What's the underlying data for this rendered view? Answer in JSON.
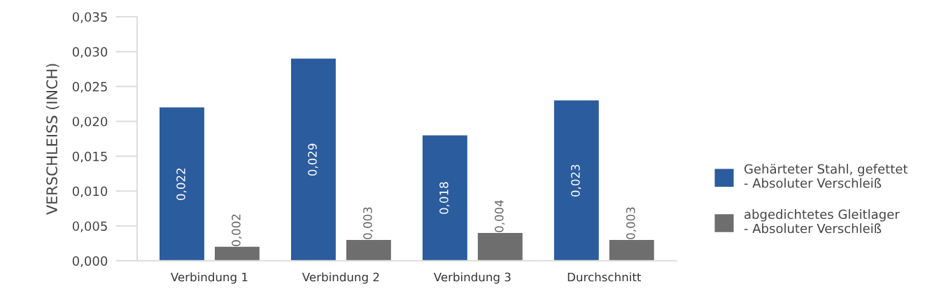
{
  "chart_data": {
    "type": "bar",
    "categories": [
      "Verbindung 1",
      "Verbindung 2",
      "Verbindung 3",
      "Durchschnitt"
    ],
    "ylabel": "VERSCHLEISS (INCH)",
    "ylim": [
      0,
      0.035
    ],
    "yticks": [
      {
        "value": 0,
        "label": "0,000"
      },
      {
        "value": 0.005,
        "label": "0,005"
      },
      {
        "value": 0.01,
        "label": "0,010"
      },
      {
        "value": 0.015,
        "label": "0,015"
      },
      {
        "value": 0.02,
        "label": "0,020"
      },
      {
        "value": 0.025,
        "label": "0,025"
      },
      {
        "value": 0.03,
        "label": "0,030"
      },
      {
        "value": 0.035,
        "label": "0,035"
      }
    ],
    "series": [
      {
        "name": "Gehärteter Stahl, gefettet\n- Absoluter Verschleiß",
        "color": "#2b5c9e",
        "values": [
          0.022,
          0.029,
          0.018,
          0.023
        ],
        "value_labels": [
          "0,022",
          "0,029",
          "0,018",
          "0,023"
        ]
      },
      {
        "name": "abgedichtetes Gleitlager\n- Absoluter Verschleiß",
        "color": "#6e6e6e",
        "values": [
          0.002,
          0.003,
          0.004,
          0.003
        ],
        "value_labels": [
          "0,002",
          "0,003",
          "0,004",
          "0,003"
        ]
      }
    ],
    "legend": "right",
    "grid": false
  }
}
